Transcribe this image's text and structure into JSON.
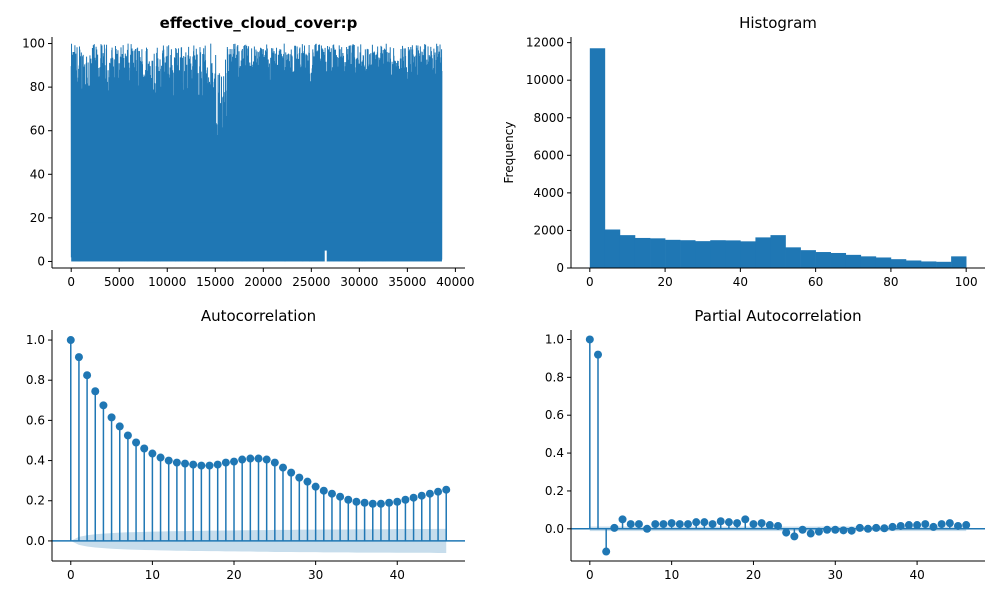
{
  "chart_data": [
    {
      "panel": "timeseries",
      "type": "line",
      "title": "effective_cloud_cover:p",
      "title_bold": true,
      "xlim": [
        -2000,
        41000
      ],
      "ylim": [
        -3,
        103
      ],
      "xticks": [
        0,
        5000,
        10000,
        15000,
        20000,
        25000,
        30000,
        35000,
        40000
      ],
      "xtick_labels": [
        "0",
        "5000",
        "10000",
        "15000",
        "20000",
        "25000",
        "30000",
        "35000",
        "40000"
      ],
      "yticks": [
        0,
        20,
        40,
        60,
        80,
        100
      ],
      "ytick_labels": [
        "0",
        "20",
        "40",
        "60",
        "80",
        "100"
      ],
      "n_points": 38600,
      "value_range": [
        0,
        100
      ],
      "color": "#1f77b4"
    },
    {
      "panel": "histogram",
      "type": "bar",
      "title": "Histogram",
      "ylabel": "Frequency",
      "bin_width": 4,
      "bin_start": 0,
      "values": [
        11700,
        2050,
        1750,
        1600,
        1580,
        1500,
        1480,
        1430,
        1480,
        1470,
        1420,
        1630,
        1750,
        1100,
        950,
        850,
        800,
        700,
        620,
        560,
        470,
        400,
        350,
        330,
        620
      ],
      "xlim": [
        -5,
        105
      ],
      "ylim": [
        0,
        12300
      ],
      "xticks": [
        0,
        20,
        40,
        60,
        80,
        100
      ],
      "xtick_labels": [
        "0",
        "20",
        "40",
        "60",
        "80",
        "100"
      ],
      "yticks": [
        0,
        2000,
        4000,
        6000,
        8000,
        10000,
        12000
      ],
      "ytick_labels": [
        "0",
        "2000",
        "4000",
        "6000",
        "8000",
        "10000",
        "12000"
      ],
      "color": "#1f77b4"
    },
    {
      "panel": "acf",
      "type": "scatter",
      "title": "Autocorrelation",
      "lags": [
        0,
        1,
        2,
        3,
        4,
        5,
        6,
        7,
        8,
        9,
        10,
        11,
        12,
        13,
        14,
        15,
        16,
        17,
        18,
        19,
        20,
        21,
        22,
        23,
        24,
        25,
        26,
        27,
        28,
        29,
        30,
        31,
        32,
        33,
        34,
        35,
        36,
        37,
        38,
        39,
        40,
        41,
        42,
        43,
        44,
        45,
        46
      ],
      "values": [
        1.0,
        0.915,
        0.825,
        0.745,
        0.675,
        0.615,
        0.57,
        0.525,
        0.49,
        0.46,
        0.435,
        0.415,
        0.4,
        0.39,
        0.385,
        0.38,
        0.375,
        0.375,
        0.38,
        0.39,
        0.395,
        0.405,
        0.41,
        0.41,
        0.405,
        0.39,
        0.365,
        0.34,
        0.315,
        0.295,
        0.27,
        0.25,
        0.235,
        0.22,
        0.205,
        0.195,
        0.19,
        0.185,
        0.185,
        0.19,
        0.195,
        0.205,
        0.215,
        0.225,
        0.235,
        0.245,
        0.255
      ],
      "conf_upper": [
        0.0,
        0.02,
        0.028,
        0.033,
        0.036,
        0.039,
        0.041,
        0.043,
        0.044,
        0.045,
        0.046,
        0.047,
        0.048,
        0.049,
        0.049,
        0.05,
        0.05,
        0.051,
        0.051,
        0.052,
        0.052,
        0.053,
        0.053,
        0.054,
        0.054,
        0.055,
        0.055,
        0.055,
        0.056,
        0.056,
        0.056,
        0.057,
        0.057,
        0.057,
        0.057,
        0.058,
        0.058,
        0.058,
        0.058,
        0.058,
        0.059,
        0.059,
        0.059,
        0.059,
        0.059,
        0.06,
        0.06
      ],
      "xlim": [
        -2.3,
        48.3
      ],
      "ylim": [
        -0.1,
        1.05
      ],
      "xticks": [
        0,
        10,
        20,
        30,
        40
      ],
      "xtick_labels": [
        "0",
        "10",
        "20",
        "30",
        "40"
      ],
      "yticks": [
        0.0,
        0.2,
        0.4,
        0.6,
        0.8,
        1.0
      ],
      "ytick_labels": [
        "0.0",
        "0.2",
        "0.4",
        "0.6",
        "0.8",
        "1.0"
      ],
      "color": "#1f77b4"
    },
    {
      "panel": "pacf",
      "type": "scatter",
      "title": "Partial Autocorrelation",
      "lags": [
        0,
        1,
        2,
        3,
        4,
        5,
        6,
        7,
        8,
        9,
        10,
        11,
        12,
        13,
        14,
        15,
        16,
        17,
        18,
        19,
        20,
        21,
        22,
        23,
        24,
        25,
        26,
        27,
        28,
        29,
        30,
        31,
        32,
        33,
        34,
        35,
        36,
        37,
        38,
        39,
        40,
        41,
        42,
        43,
        44,
        45,
        46
      ],
      "values": [
        1.0,
        0.92,
        -0.12,
        0.005,
        0.05,
        0.025,
        0.025,
        0.0,
        0.025,
        0.025,
        0.03,
        0.025,
        0.025,
        0.035,
        0.035,
        0.025,
        0.04,
        0.035,
        0.03,
        0.05,
        0.025,
        0.03,
        0.02,
        0.015,
        -0.02,
        -0.04,
        -0.005,
        -0.025,
        -0.015,
        -0.005,
        -0.005,
        -0.008,
        -0.01,
        0.005,
        0.0,
        0.005,
        0.003,
        0.01,
        0.015,
        0.02,
        0.02,
        0.025,
        0.01,
        0.025,
        0.03,
        0.015,
        0.02
      ],
      "xlim": [
        -2.3,
        48.3
      ],
      "ylim": [
        -0.17,
        1.05
      ],
      "xticks": [
        0,
        10,
        20,
        30,
        40
      ],
      "xtick_labels": [
        "0",
        "10",
        "20",
        "30",
        "40"
      ],
      "yticks": [
        0.0,
        0.2,
        0.4,
        0.6,
        0.8,
        1.0
      ],
      "ytick_labels": [
        "0.0",
        "0.2",
        "0.4",
        "0.6",
        "0.8",
        "1.0"
      ],
      "color": "#1f77b4"
    }
  ]
}
